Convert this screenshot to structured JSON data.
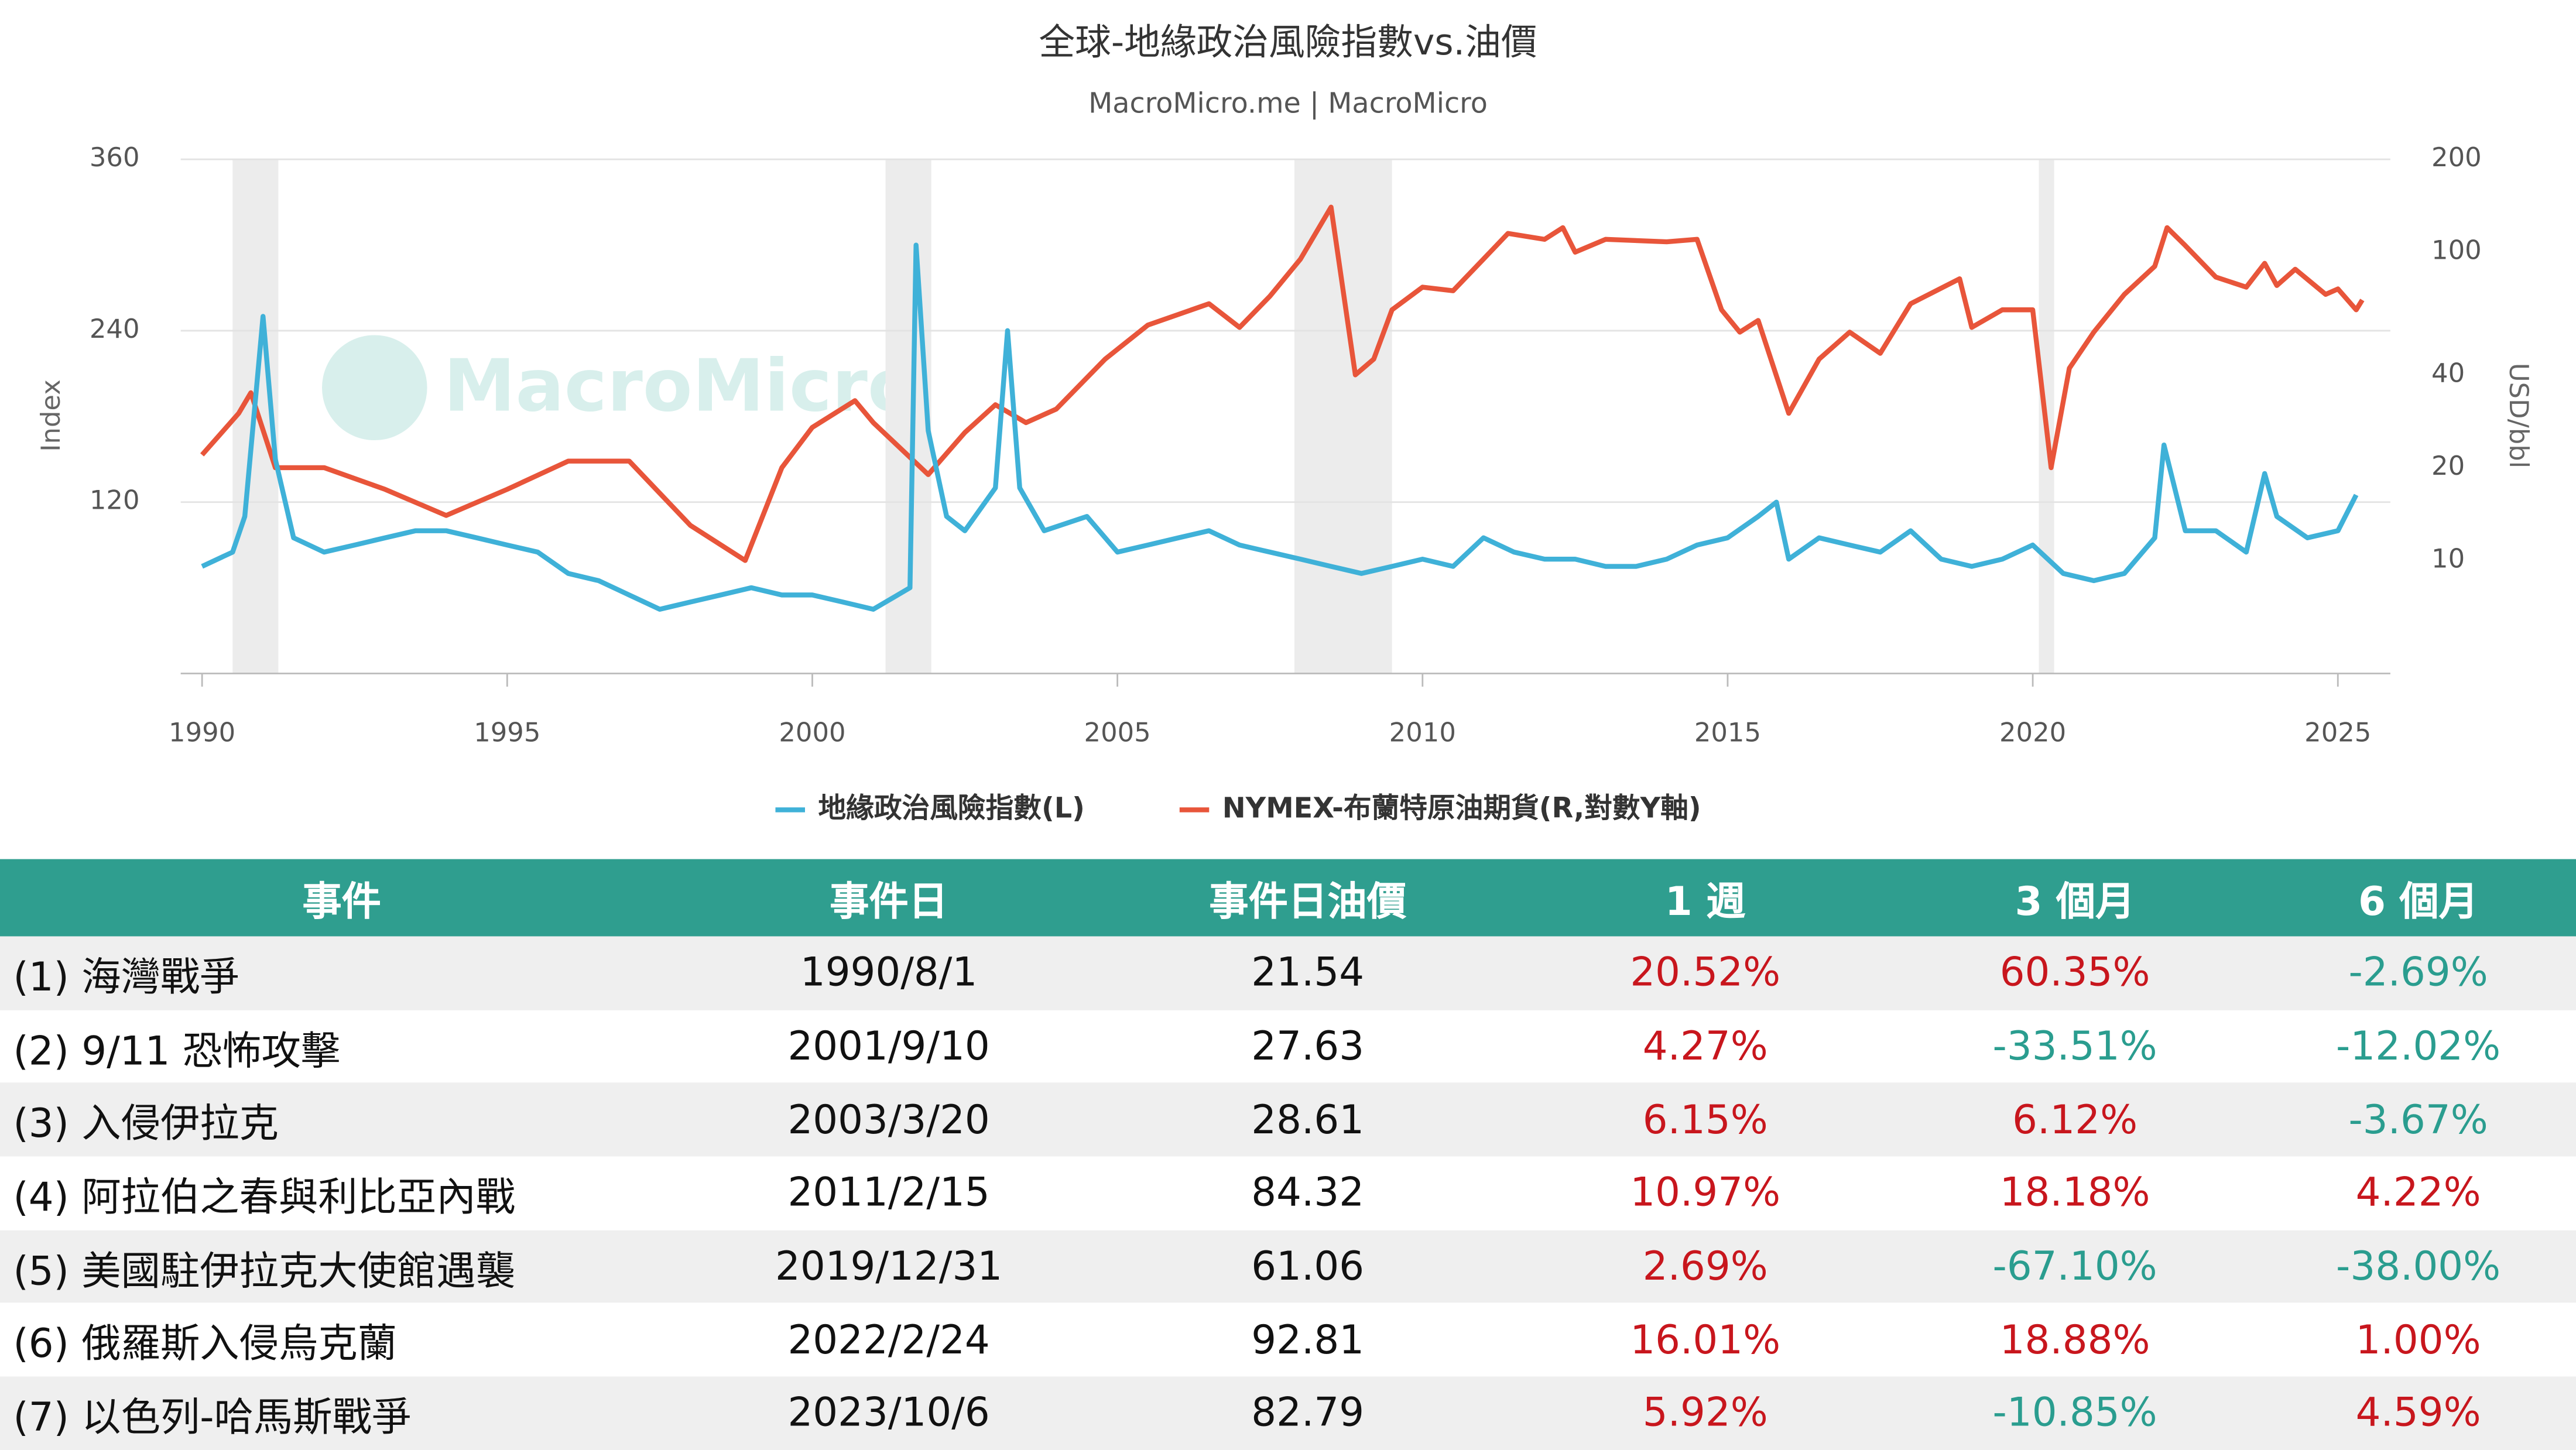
{
  "chart_data": {
    "type": "line",
    "title": "全球-地緣政治風險指數vs.油價",
    "subtitle": "MacroMicro.me | MacroMicro",
    "watermark": "MacroMicro",
    "y_label": "Index",
    "y2_label": "USD/bbl",
    "xlim": [
      1989.65,
      2025.86
    ],
    "xticks": [
      1990,
      1995,
      2000,
      2005,
      2010,
      2015,
      2020,
      2025
    ],
    "ylim": [
      0,
      360
    ],
    "yticks": [
      120,
      240,
      360
    ],
    "y2lim": [
      4.3,
      200
    ],
    "y2ticks": [
      10,
      20,
      40,
      100,
      200
    ],
    "y2log": true,
    "grid": true,
    "shaded_periods": [
      [
        1990.5,
        1991.25
      ],
      [
        2001.2,
        2001.95
      ],
      [
        2007.9,
        2009.5
      ],
      [
        2020.1,
        2020.35
      ]
    ],
    "series": [
      {
        "name": "地緣政治風險指數(L)",
        "color": "#3fb1d8",
        "axis": "y",
        "x": [
          1990,
          1990.5,
          1990.7,
          1991,
          1991.2,
          1991.5,
          1992,
          1992.5,
          1993,
          1993.5,
          1994,
          1994.5,
          1995,
          1995.5,
          1996,
          1996.5,
          1997,
          1997.5,
          1998,
          1998.5,
          1999,
          1999.5,
          2000,
          2000.5,
          2001,
          2001.6,
          2001.7,
          2001.9,
          2002.2,
          2002.5,
          2003,
          2003.2,
          2003.4,
          2003.8,
          2004.5,
          2005,
          2005.5,
          2006,
          2006.5,
          2007,
          2007.5,
          2008,
          2008.5,
          2009,
          2009.5,
          2010,
          2010.5,
          2011,
          2011.5,
          2012,
          2012.5,
          2013,
          2013.5,
          2014,
          2014.5,
          2015,
          2015.5,
          2015.8,
          2016,
          2016.5,
          2017,
          2017.5,
          2018,
          2018.5,
          2019,
          2019.5,
          2020,
          2020.5,
          2021,
          2021.5,
          2022,
          2022.15,
          2022.5,
          2023,
          2023.5,
          2023.8,
          2024,
          2024.5,
          2025,
          2025.3
        ],
        "values": [
          75,
          85,
          110,
          250,
          150,
          95,
          85,
          90,
          95,
          100,
          100,
          95,
          90,
          85,
          70,
          65,
          55,
          45,
          50,
          55,
          60,
          55,
          55,
          50,
          45,
          60,
          300,
          170,
          110,
          100,
          130,
          240,
          130,
          100,
          110,
          85,
          90,
          95,
          100,
          90,
          85,
          80,
          75,
          70,
          75,
          80,
          75,
          95,
          85,
          80,
          80,
          75,
          75,
          80,
          90,
          95,
          110,
          120,
          80,
          95,
          90,
          85,
          100,
          80,
          75,
          80,
          90,
          70,
          65,
          70,
          95,
          160,
          100,
          100,
          85,
          140,
          110,
          95,
          100,
          125
        ]
      },
      {
        "name": "NYMEX-布蘭特原油期貨(R,對數Y軸)",
        "color": "#e8553a",
        "axis": "y2",
        "x": [
          1990,
          1990.6,
          1990.8,
          1991.2,
          1992,
          1993,
          1994,
          1995,
          1996,
          1997,
          1998,
          1998.9,
          1999.5,
          2000,
          2000.7,
          2001,
          2001.9,
          2002.5,
          2003,
          2003.5,
          2004,
          2004.8,
          2005.5,
          2006.5,
          2007,
          2007.5,
          2008,
          2008.5,
          2008.9,
          2009.2,
          2009.5,
          2010,
          2010.5,
          2011,
          2011.4,
          2012,
          2012.3,
          2012.5,
          2013,
          2014,
          2014.5,
          2014.9,
          2015.2,
          2015.5,
          2016,
          2016.5,
          2017,
          2017.5,
          2018,
          2018.8,
          2019,
          2019.5,
          2020,
          2020.3,
          2020.6,
          2021,
          2021.5,
          2022,
          2022.2,
          2022.5,
          2023,
          2023.5,
          2023.8,
          2024,
          2024.3,
          2024.8,
          2025,
          2025.3,
          2025.4
        ],
        "values": [
          22,
          30,
          35,
          20,
          20,
          17,
          14,
          17,
          21,
          21,
          13,
          10,
          20,
          27,
          33,
          28,
          19,
          26,
          32,
          28,
          31,
          45,
          58,
          68,
          57,
          72,
          95,
          140,
          40,
          45,
          65,
          77,
          75,
          95,
          115,
          110,
          120,
          100,
          110,
          108,
          110,
          65,
          55,
          60,
          30,
          45,
          55,
          47,
          68,
          82,
          57,
          65,
          65,
          20,
          42,
          55,
          73,
          90,
          120,
          105,
          83,
          77,
          92,
          78,
          88,
          73,
          76,
          65,
          70
        ]
      }
    ]
  },
  "table": {
    "header": [
      "事件",
      "事件日",
      "事件日油價",
      "1 週",
      "3 個月",
      "6 個月"
    ],
    "rows": [
      [
        "(1) 海灣戰爭",
        "1990/8/1",
        "21.54",
        "20.52%",
        "60.35%",
        "-2.69%"
      ],
      [
        "(2) 9/11 恐怖攻擊",
        "2001/9/10",
        "27.63",
        "4.27%",
        "-33.51%",
        "-12.02%"
      ],
      [
        "(3) 入侵伊拉克",
        "2003/3/20",
        "28.61",
        "6.15%",
        "6.12%",
        "-3.67%"
      ],
      [
        "(4) 阿拉伯之春與利比亞內戰",
        "2011/2/15",
        "84.32",
        "10.97%",
        "18.18%",
        "4.22%"
      ],
      [
        "(5) 美國駐伊拉克大使館遇襲",
        "2019/12/31",
        "61.06",
        "2.69%",
        "-67.10%",
        "-38.00%"
      ],
      [
        "(6) 俄羅斯入侵烏克蘭",
        "2022/2/24",
        "92.81",
        "16.01%",
        "18.88%",
        "1.00%"
      ],
      [
        "(7) 以色列-哈馬斯戰爭",
        "2023/10/6",
        "82.79",
        "5.92%",
        "-10.85%",
        "4.59%"
      ]
    ]
  }
}
